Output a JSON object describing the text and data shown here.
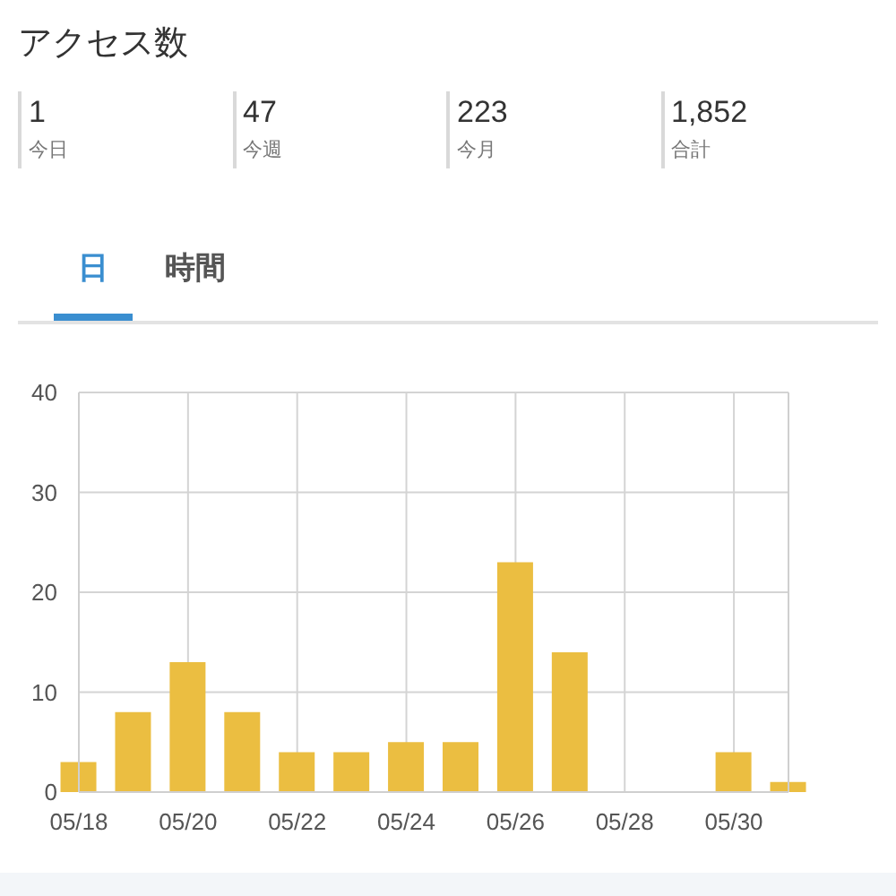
{
  "chart_data": [
    {
      "type": "other",
      "title": "アクセス数",
      "annotations": [
        "1",
        "今日",
        "47",
        "今週",
        "223",
        "今月",
        "1,852",
        "合計"
      ]
    },
    {
      "type": "bar",
      "annotations": [
        "日",
        "時間"
      ],
      "x": [
        "--05-18",
        "--05-19",
        "--05-20",
        "--05-21",
        "--05-22",
        "--05-23",
        "--05-24",
        "--05-25",
        "--05-26",
        "--05-27",
        "--05-28",
        "--05-29",
        "--05-30",
        "--05-31"
      ],
      "values": [
        3,
        8,
        13,
        8,
        4,
        4,
        5,
        5,
        23,
        14,
        0,
        0,
        4,
        1
      ],
      "color": "#ebbe41",
      "xlim": [
        "--05-18",
        "--05-31"
      ],
      "xticks": [
        {
          "value": "--05-18",
          "label": "05/18"
        },
        {
          "value": "--05-20",
          "label": "05/20"
        },
        {
          "value": "--05-22",
          "label": "05/22"
        },
        {
          "value": "--05-24",
          "label": "05/24"
        },
        {
          "value": "--05-26",
          "label": "05/26"
        },
        {
          "value": "--05-28",
          "label": "05/28"
        },
        {
          "value": "--05-30",
          "label": "05/30"
        }
      ],
      "ylim": [
        0,
        40
      ],
      "yticks": [
        0,
        10,
        20,
        30,
        40
      ],
      "grid": true
    }
  ]
}
